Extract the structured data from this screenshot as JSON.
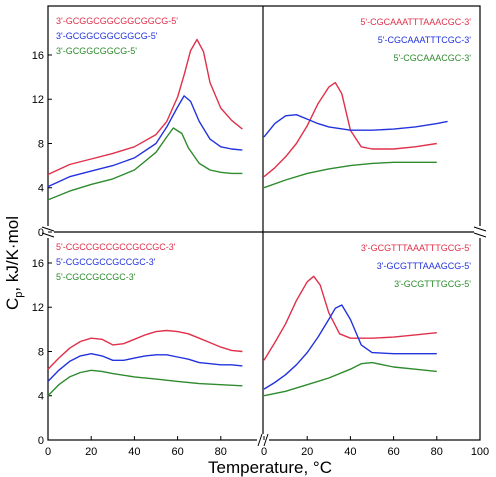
{
  "figure": {
    "ylabel": "C",
    "ylabel_sub": "p",
    "ylabel_rest": ", kJ/K·mol",
    "xlabel": "Temperature, °C"
  },
  "colors": {
    "red": "#e0304a",
    "blue": "#2233dd",
    "green": "#2e8b2e"
  },
  "chart_data": [
    {
      "panel": "top-left",
      "type": "line",
      "xlim": [
        0,
        100
      ],
      "ylim": [
        0,
        18
      ],
      "y_ticks": [
        "0",
        "4",
        "8",
        "12",
        "16"
      ],
      "x_ticks": [],
      "legend_position": "top-left",
      "series": [
        {
          "name": "3'-GCGGCGGCGGCGGCG-5'",
          "color": "#e0304a",
          "x": [
            0,
            10,
            20,
            30,
            40,
            50,
            55,
            60,
            63,
            66,
            69,
            72,
            75,
            80,
            85,
            90
          ],
          "y": [
            5.2,
            6.1,
            6.6,
            7.1,
            7.7,
            8.8,
            10.0,
            12.2,
            14.2,
            16.4,
            17.4,
            16.3,
            13.5,
            11.2,
            10.1,
            9.3
          ]
        },
        {
          "name": "3'-GCGGCGGCGGCG-5'",
          "color": "#2233dd",
          "x": [
            0,
            10,
            20,
            30,
            40,
            50,
            55,
            60,
            63,
            66,
            70,
            75,
            80,
            85,
            90
          ],
          "y": [
            4.1,
            5.0,
            5.5,
            6.0,
            6.7,
            8.0,
            9.5,
            11.3,
            12.3,
            11.8,
            10.0,
            8.4,
            7.7,
            7.5,
            7.4
          ]
        },
        {
          "name": "3'-GCGGCGGCG-5'",
          "color": "#2e8b2e",
          "x": [
            0,
            10,
            20,
            30,
            40,
            50,
            55,
            58,
            62,
            65,
            70,
            75,
            80,
            85,
            90
          ],
          "y": [
            2.9,
            3.7,
            4.3,
            4.8,
            5.6,
            7.2,
            8.6,
            9.4,
            8.9,
            7.6,
            6.2,
            5.6,
            5.4,
            5.3,
            5.3
          ]
        }
      ]
    },
    {
      "panel": "top-right",
      "type": "line",
      "xlim": [
        0,
        100
      ],
      "ylim": [
        0,
        18
      ],
      "y_ticks": [],
      "x_ticks": [],
      "legend_position": "top-right",
      "series": [
        {
          "name": "5'-CGCAAATTTAAACGC-3'",
          "color": "#e0304a",
          "x": [
            0,
            5,
            10,
            15,
            20,
            25,
            30,
            33,
            36,
            40,
            45,
            50,
            60,
            70,
            80
          ],
          "y": [
            5.0,
            5.8,
            6.8,
            8.0,
            9.6,
            11.6,
            13.1,
            13.5,
            12.5,
            9.2,
            7.7,
            7.5,
            7.5,
            7.7,
            8.0
          ]
        },
        {
          "name": "5'-CGCAAATTTCGC-3'",
          "color": "#2233dd",
          "x": [
            0,
            5,
            10,
            15,
            20,
            25,
            30,
            40,
            50,
            60,
            70,
            80,
            85
          ],
          "y": [
            8.6,
            9.8,
            10.5,
            10.6,
            10.2,
            9.8,
            9.5,
            9.2,
            9.2,
            9.3,
            9.5,
            9.8,
            10.0
          ]
        },
        {
          "name": "5'-CGCAAACGC-3'",
          "color": "#2e8b2e",
          "x": [
            0,
            10,
            20,
            30,
            40,
            50,
            60,
            70,
            80
          ],
          "y": [
            4.0,
            4.7,
            5.3,
            5.7,
            6.0,
            6.2,
            6.3,
            6.3,
            6.3
          ]
        }
      ]
    },
    {
      "panel": "bottom-left",
      "type": "line",
      "xlim": [
        0,
        100
      ],
      "ylim": [
        0,
        18
      ],
      "y_ticks": [
        "0",
        "4",
        "8",
        "12",
        "16"
      ],
      "x_ticks": [
        "0",
        "20",
        "40",
        "60",
        "80"
      ],
      "legend_position": "top-left",
      "series": [
        {
          "name": "5'-CGCCGCCGCCGCCGC-3'",
          "color": "#e0304a",
          "x": [
            0,
            5,
            10,
            15,
            20,
            25,
            30,
            35,
            40,
            45,
            50,
            55,
            60,
            65,
            70,
            75,
            80,
            85,
            90
          ],
          "y": [
            6.4,
            7.4,
            8.3,
            8.9,
            9.2,
            9.1,
            8.6,
            8.7,
            9.1,
            9.5,
            9.8,
            9.9,
            9.8,
            9.6,
            9.2,
            8.8,
            8.4,
            8.1,
            8.0
          ]
        },
        {
          "name": "5'-CGCCGCCGCCGC-3'",
          "color": "#2233dd",
          "x": [
            0,
            5,
            10,
            15,
            20,
            25,
            30,
            35,
            40,
            45,
            50,
            55,
            60,
            65,
            70,
            75,
            80,
            85,
            90
          ],
          "y": [
            5.3,
            6.3,
            7.1,
            7.6,
            7.8,
            7.6,
            7.2,
            7.2,
            7.4,
            7.6,
            7.7,
            7.7,
            7.5,
            7.3,
            7.0,
            6.9,
            6.8,
            6.8,
            6.7
          ]
        },
        {
          "name": "5'-CGCCGCCGC-3'",
          "color": "#2e8b2e",
          "x": [
            0,
            5,
            10,
            15,
            20,
            25,
            30,
            40,
            50,
            60,
            70,
            80,
            90
          ],
          "y": [
            4.0,
            5.0,
            5.7,
            6.1,
            6.3,
            6.2,
            6.0,
            5.7,
            5.5,
            5.3,
            5.1,
            5.0,
            4.9
          ]
        }
      ]
    },
    {
      "panel": "bottom-right",
      "type": "line",
      "xlim": [
        0,
        100
      ],
      "ylim": [
        0,
        18
      ],
      "y_ticks": [],
      "x_ticks": [
        "0",
        "20",
        "40",
        "60",
        "80",
        "100"
      ],
      "legend_position": "top-right",
      "series": [
        {
          "name": "3'-GCGTTTAAATTTGCG-5'",
          "color": "#e0304a",
          "x": [
            0,
            5,
            10,
            15,
            20,
            23,
            26,
            30,
            35,
            40,
            50,
            60,
            70,
            80
          ],
          "y": [
            7.2,
            8.8,
            10.5,
            12.6,
            14.3,
            14.8,
            14.0,
            11.5,
            9.6,
            9.2,
            9.2,
            9.3,
            9.5,
            9.7
          ]
        },
        {
          "name": "3'-GCGTTTAAAGCG-5'",
          "color": "#2233dd",
          "x": [
            0,
            5,
            10,
            15,
            20,
            25,
            30,
            33,
            36,
            40,
            45,
            50,
            60,
            70,
            80
          ],
          "y": [
            4.6,
            5.2,
            5.9,
            6.8,
            7.9,
            9.3,
            10.9,
            11.9,
            12.2,
            10.9,
            8.6,
            7.9,
            7.8,
            7.8,
            7.8
          ]
        },
        {
          "name": "3'-GCGTTTGCG-5'",
          "color": "#2e8b2e",
          "x": [
            0,
            10,
            20,
            30,
            40,
            45,
            50,
            55,
            60,
            70,
            80
          ],
          "y": [
            4.0,
            4.4,
            5.0,
            5.6,
            6.4,
            6.9,
            7.0,
            6.8,
            6.6,
            6.4,
            6.2
          ]
        }
      ]
    }
  ]
}
